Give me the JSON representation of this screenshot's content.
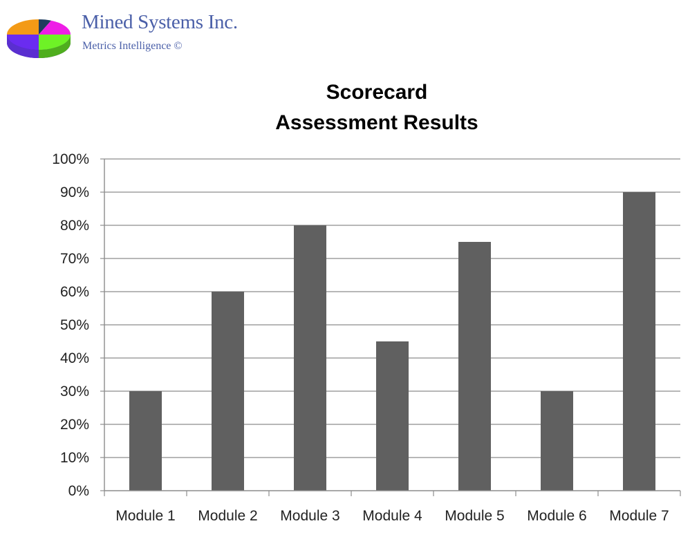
{
  "brand": {
    "name": "Mined Systems Inc.",
    "tagline": "Metrics Intelligence ©"
  },
  "chart_data": {
    "type": "bar",
    "title": [
      "Scorecard",
      "Assessment Results"
    ],
    "categories": [
      "Module 1",
      "Module 2",
      "Module 3",
      "Module 4",
      "Module 5",
      "Module 6",
      "Module 7"
    ],
    "values": [
      30,
      60,
      80,
      45,
      75,
      30,
      90
    ],
    "ylim": [
      0,
      100
    ],
    "yticks": [
      "0%",
      "10%",
      "20%",
      "30%",
      "40%",
      "50%",
      "60%",
      "70%",
      "80%",
      "90%",
      "100%"
    ],
    "xlabel": "",
    "ylabel": "",
    "grid": true,
    "legend": "none",
    "colors": {
      "bar": "#606060",
      "grid": "#8c8c8c",
      "axis": "#8c8c8c"
    }
  }
}
